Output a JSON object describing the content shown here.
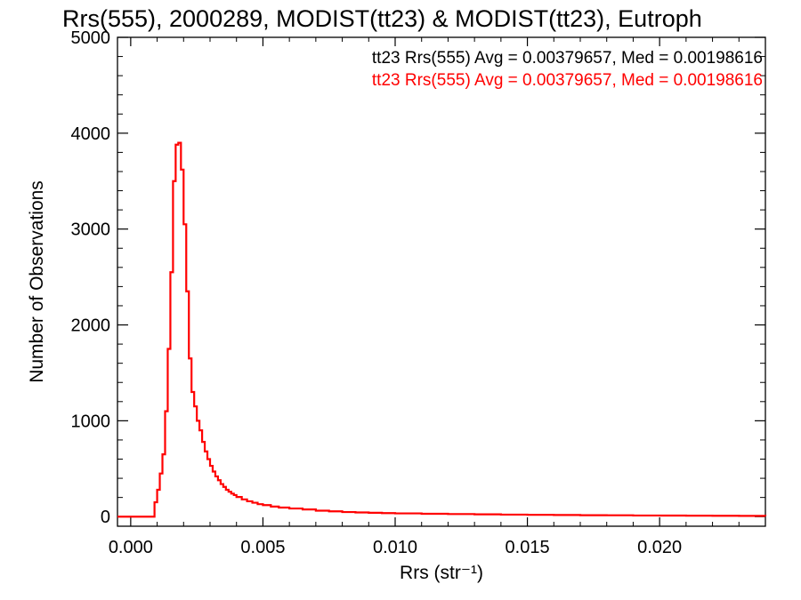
{
  "chart_data": {
    "type": "histogram",
    "title": "Rrs(555), 2000289, MODIST(tt23) & MODIST(tt23), Eutroph",
    "xlabel": "Rrs (str⁻¹)",
    "ylabel": "Number of Observations",
    "xlim": [
      -0.0005,
      0.024
    ],
    "ylim": [
      -100,
      5000
    ],
    "x_ticks": [
      0.0,
      0.005,
      0.01,
      0.015,
      0.02
    ],
    "x_tick_labels": [
      "0.000",
      "0.005",
      "0.010",
      "0.015",
      "0.020"
    ],
    "y_ticks": [
      0,
      1000,
      2000,
      3000,
      4000,
      5000
    ],
    "y_tick_labels": [
      "0",
      "1000",
      "2000",
      "3000",
      "4000",
      "5000"
    ],
    "grid": false,
    "legend_position": "top-right",
    "legend": [
      {
        "text": "tt23 Rrs(555) Avg = 0.00379657, Med = 0.00198616",
        "color": "#000000"
      },
      {
        "text": "tt23 Rrs(555) Avg = 0.00379657, Med = 0.00198616",
        "color": "#ff0000"
      }
    ],
    "series": [
      {
        "color": "#ff0000",
        "step": true,
        "points": [
          [
            -0.0005,
            0
          ],
          [
            0.0008,
            0
          ],
          [
            0.0009,
            150
          ],
          [
            0.001,
            280
          ],
          [
            0.0011,
            450
          ],
          [
            0.0012,
            650
          ],
          [
            0.0013,
            1100
          ],
          [
            0.0014,
            1750
          ],
          [
            0.0015,
            2550
          ],
          [
            0.0016,
            3500
          ],
          [
            0.0017,
            3880
          ],
          [
            0.0018,
            3900
          ],
          [
            0.0019,
            3620
          ],
          [
            0.002,
            3050
          ],
          [
            0.0021,
            2350
          ],
          [
            0.0022,
            1650
          ],
          [
            0.0023,
            1300
          ],
          [
            0.0024,
            1150
          ],
          [
            0.0025,
            1000
          ],
          [
            0.0026,
            900
          ],
          [
            0.0027,
            780
          ],
          [
            0.0028,
            680
          ],
          [
            0.0029,
            600
          ],
          [
            0.003,
            530
          ],
          [
            0.0031,
            470
          ],
          [
            0.0032,
            420
          ],
          [
            0.0033,
            380
          ],
          [
            0.0034,
            340
          ],
          [
            0.0035,
            310
          ],
          [
            0.0036,
            280
          ],
          [
            0.0037,
            260
          ],
          [
            0.0038,
            240
          ],
          [
            0.0039,
            225
          ],
          [
            0.004,
            205
          ],
          [
            0.0042,
            180
          ],
          [
            0.0044,
            160
          ],
          [
            0.0046,
            145
          ],
          [
            0.0048,
            130
          ],
          [
            0.005,
            120
          ],
          [
            0.0053,
            105
          ],
          [
            0.0056,
            95
          ],
          [
            0.006,
            85
          ],
          [
            0.0065,
            75
          ],
          [
            0.007,
            62
          ],
          [
            0.0075,
            55
          ],
          [
            0.008,
            48
          ],
          [
            0.0085,
            44
          ],
          [
            0.009,
            40
          ],
          [
            0.0095,
            37
          ],
          [
            0.01,
            34
          ],
          [
            0.011,
            30
          ],
          [
            0.012,
            27
          ],
          [
            0.013,
            24
          ],
          [
            0.014,
            21
          ],
          [
            0.015,
            19
          ],
          [
            0.016,
            17
          ],
          [
            0.017,
            15
          ],
          [
            0.018,
            14
          ],
          [
            0.019,
            12
          ],
          [
            0.02,
            11
          ],
          [
            0.021,
            10
          ],
          [
            0.022,
            9
          ],
          [
            0.023,
            8
          ],
          [
            0.024,
            7
          ]
        ]
      }
    ]
  }
}
